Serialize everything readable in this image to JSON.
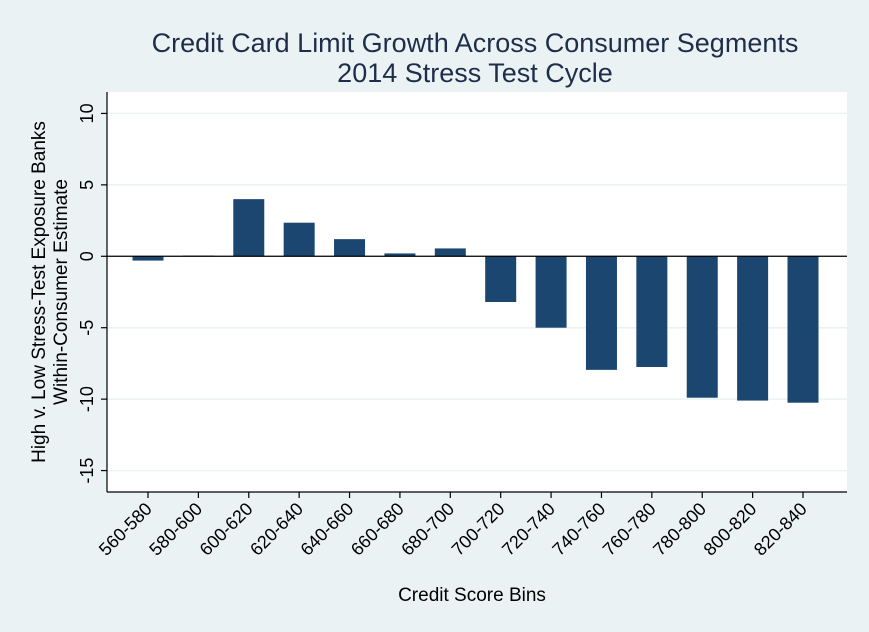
{
  "chart_data": {
    "type": "bar",
    "title": "Credit Card Limit Growth Across Consumer Segments",
    "subtitle": "2014 Stress Test Cycle",
    "xlabel": "Credit Score Bins",
    "ylabel_lines": [
      "High v. Low Stress-Test Exposure Banks",
      "Within-Consumer Estimate"
    ],
    "categories": [
      "560-580",
      "580-600",
      "600-620",
      "620-640",
      "640-660",
      "660-680",
      "680-700",
      "700-720",
      "720-740",
      "740-760",
      "760-780",
      "780-800",
      "800-820",
      "820-840"
    ],
    "values": [
      -0.3,
      0.05,
      4.0,
      2.35,
      1.2,
      0.2,
      0.55,
      -3.2,
      -5.0,
      -7.95,
      -7.75,
      -9.9,
      -10.1,
      -10.25
    ],
    "yticks": [
      10,
      5,
      0,
      -5,
      -10,
      -15
    ],
    "ylim": [
      -16.5,
      11.5
    ],
    "grid": true,
    "bar_color": "#1a4670",
    "plot_background": "#ffffff",
    "page_background": "#eaf2f3"
  }
}
